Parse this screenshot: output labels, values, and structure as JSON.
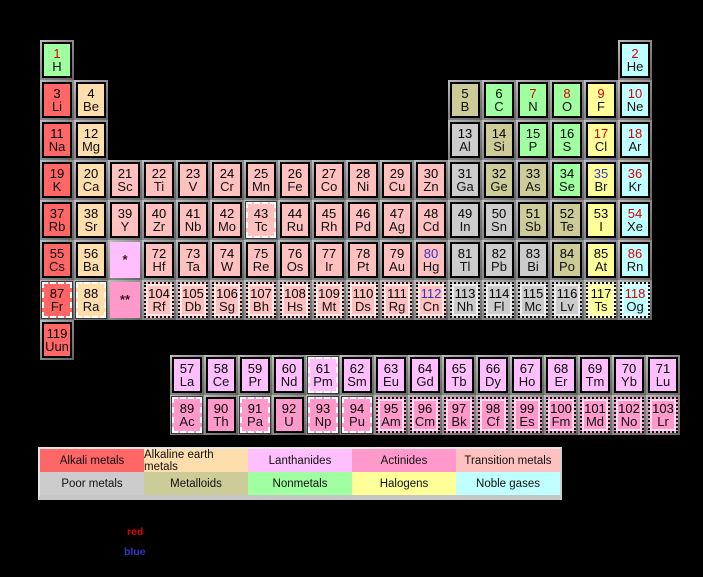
{
  "colors": {
    "background": "#000000",
    "categories": {
      "alkali": "#FF6666",
      "alkaline": "#FFDEAD",
      "lanthanide": "#FFBFFF",
      "actinide": "#FF99CC",
      "transition": "#FFC0C0",
      "poor": "#CCCCCC",
      "metalloid": "#CCCC99",
      "nonmetal": "#A0FFA0",
      "halogen": "#FFFF99",
      "noble": "#C0FFFF"
    },
    "states": {
      "solid": "#000000",
      "liquid": "#3333CC",
      "gas": "#DF0000"
    }
  },
  "legend": {
    "items": [
      {
        "label": "Alkali metals",
        "cat": "alkali"
      },
      {
        "label": "Alkaline earth metals",
        "cat": "alkaline"
      },
      {
        "label": "Lanthanides",
        "cat": "lanthanide"
      },
      {
        "label": "Actinides",
        "cat": "actinide"
      },
      {
        "label": "Transition metals",
        "cat": "transition"
      },
      {
        "label": "Poor metals",
        "cat": "poor"
      },
      {
        "label": "Metalloids",
        "cat": "metalloid"
      },
      {
        "label": "Nonmetals",
        "cat": "nonmetal"
      },
      {
        "label": "Halogens",
        "cat": "halogen"
      },
      {
        "label": "Noble gases",
        "cat": "noble"
      }
    ]
  },
  "states_note": {
    "red_word": "red",
    "blue_word": "blue"
  },
  "placeholders": [
    {
      "symbol": "*",
      "row": 6,
      "col": 3,
      "cat": "lanthanide"
    },
    {
      "symbol": "**",
      "row": 7,
      "col": 3,
      "cat": "actinide"
    }
  ],
  "element_fields": [
    "number",
    "symbol",
    "row",
    "col",
    "category",
    "state",
    "border"
  ],
  "elements_main": [
    [
      1,
      "H",
      1,
      1,
      "nonmetal",
      "gas",
      "solid"
    ],
    [
      2,
      "He",
      1,
      18,
      "noble",
      "gas",
      "solid"
    ],
    [
      3,
      "Li",
      2,
      1,
      "alkali",
      "solid",
      "solid"
    ],
    [
      4,
      "Be",
      2,
      2,
      "alkaline",
      "solid",
      "solid"
    ],
    [
      5,
      "B",
      2,
      13,
      "metalloid",
      "solid",
      "solid"
    ],
    [
      6,
      "C",
      2,
      14,
      "nonmetal",
      "solid",
      "solid"
    ],
    [
      7,
      "N",
      2,
      15,
      "nonmetal",
      "gas",
      "solid"
    ],
    [
      8,
      "O",
      2,
      16,
      "nonmetal",
      "gas",
      "solid"
    ],
    [
      9,
      "F",
      2,
      17,
      "halogen",
      "gas",
      "solid"
    ],
    [
      10,
      "Ne",
      2,
      18,
      "noble",
      "gas",
      "solid"
    ],
    [
      11,
      "Na",
      3,
      1,
      "alkali",
      "solid",
      "solid"
    ],
    [
      12,
      "Mg",
      3,
      2,
      "alkaline",
      "solid",
      "solid"
    ],
    [
      13,
      "Al",
      3,
      13,
      "poor",
      "solid",
      "solid"
    ],
    [
      14,
      "Si",
      3,
      14,
      "metalloid",
      "solid",
      "solid"
    ],
    [
      15,
      "P",
      3,
      15,
      "nonmetal",
      "solid",
      "solid"
    ],
    [
      16,
      "S",
      3,
      16,
      "nonmetal",
      "solid",
      "solid"
    ],
    [
      17,
      "Cl",
      3,
      17,
      "halogen",
      "gas",
      "solid"
    ],
    [
      18,
      "Ar",
      3,
      18,
      "noble",
      "gas",
      "solid"
    ],
    [
      19,
      "K",
      4,
      1,
      "alkali",
      "solid",
      "solid"
    ],
    [
      20,
      "Ca",
      4,
      2,
      "alkaline",
      "solid",
      "solid"
    ],
    [
      21,
      "Sc",
      4,
      3,
      "transition",
      "solid",
      "solid"
    ],
    [
      22,
      "Ti",
      4,
      4,
      "transition",
      "solid",
      "solid"
    ],
    [
      23,
      "V",
      4,
      5,
      "transition",
      "solid",
      "solid"
    ],
    [
      24,
      "Cr",
      4,
      6,
      "transition",
      "solid",
      "solid"
    ],
    [
      25,
      "Mn",
      4,
      7,
      "transition",
      "solid",
      "solid"
    ],
    [
      26,
      "Fe",
      4,
      8,
      "transition",
      "solid",
      "solid"
    ],
    [
      27,
      "Co",
      4,
      9,
      "transition",
      "solid",
      "solid"
    ],
    [
      28,
      "Ni",
      4,
      10,
      "transition",
      "solid",
      "solid"
    ],
    [
      29,
      "Cu",
      4,
      11,
      "transition",
      "solid",
      "solid"
    ],
    [
      30,
      "Zn",
      4,
      12,
      "transition",
      "solid",
      "solid"
    ],
    [
      31,
      "Ga",
      4,
      13,
      "poor",
      "solid",
      "solid"
    ],
    [
      32,
      "Ge",
      4,
      14,
      "metalloid",
      "solid",
      "solid"
    ],
    [
      33,
      "As",
      4,
      15,
      "metalloid",
      "solid",
      "solid"
    ],
    [
      34,
      "Se",
      4,
      16,
      "nonmetal",
      "solid",
      "solid"
    ],
    [
      35,
      "Br",
      4,
      17,
      "halogen",
      "liquid",
      "solid"
    ],
    [
      36,
      "Kr",
      4,
      18,
      "noble",
      "gas",
      "solid"
    ],
    [
      37,
      "Rb",
      5,
      1,
      "alkali",
      "solid",
      "solid"
    ],
    [
      38,
      "Sr",
      5,
      2,
      "alkaline",
      "solid",
      "solid"
    ],
    [
      39,
      "Y",
      5,
      3,
      "transition",
      "solid",
      "solid"
    ],
    [
      40,
      "Zr",
      5,
      4,
      "transition",
      "solid",
      "solid"
    ],
    [
      41,
      "Nb",
      5,
      5,
      "transition",
      "solid",
      "solid"
    ],
    [
      42,
      "Mo",
      5,
      6,
      "transition",
      "solid",
      "solid"
    ],
    [
      43,
      "Tc",
      5,
      7,
      "transition",
      "solid",
      "dashed"
    ],
    [
      44,
      "Ru",
      5,
      8,
      "transition",
      "solid",
      "solid"
    ],
    [
      45,
      "Rh",
      5,
      9,
      "transition",
      "solid",
      "solid"
    ],
    [
      46,
      "Pd",
      5,
      10,
      "transition",
      "solid",
      "solid"
    ],
    [
      47,
      "Ag",
      5,
      11,
      "transition",
      "solid",
      "solid"
    ],
    [
      48,
      "Cd",
      5,
      12,
      "transition",
      "solid",
      "solid"
    ],
    [
      49,
      "In",
      5,
      13,
      "poor",
      "solid",
      "solid"
    ],
    [
      50,
      "Sn",
      5,
      14,
      "poor",
      "solid",
      "solid"
    ],
    [
      51,
      "Sb",
      5,
      15,
      "metalloid",
      "solid",
      "solid"
    ],
    [
      52,
      "Te",
      5,
      16,
      "metalloid",
      "solid",
      "solid"
    ],
    [
      53,
      "I",
      5,
      17,
      "halogen",
      "solid",
      "solid"
    ],
    [
      54,
      "Xe",
      5,
      18,
      "noble",
      "gas",
      "solid"
    ],
    [
      55,
      "Cs",
      6,
      1,
      "alkali",
      "solid",
      "solid"
    ],
    [
      56,
      "Ba",
      6,
      2,
      "alkaline",
      "solid",
      "solid"
    ],
    [
      72,
      "Hf",
      6,
      4,
      "transition",
      "solid",
      "solid"
    ],
    [
      73,
      "Ta",
      6,
      5,
      "transition",
      "solid",
      "solid"
    ],
    [
      74,
      "W",
      6,
      6,
      "transition",
      "solid",
      "solid"
    ],
    [
      75,
      "Re",
      6,
      7,
      "transition",
      "solid",
      "solid"
    ],
    [
      76,
      "Os",
      6,
      8,
      "transition",
      "solid",
      "solid"
    ],
    [
      77,
      "Ir",
      6,
      9,
      "transition",
      "solid",
      "solid"
    ],
    [
      78,
      "Pt",
      6,
      10,
      "transition",
      "solid",
      "solid"
    ],
    [
      79,
      "Au",
      6,
      11,
      "transition",
      "solid",
      "solid"
    ],
    [
      80,
      "Hg",
      6,
      12,
      "transition",
      "liquid",
      "solid"
    ],
    [
      81,
      "Tl",
      6,
      13,
      "poor",
      "solid",
      "solid"
    ],
    [
      82,
      "Pb",
      6,
      14,
      "poor",
      "solid",
      "solid"
    ],
    [
      83,
      "Bi",
      6,
      15,
      "poor",
      "solid",
      "solid"
    ],
    [
      84,
      "Po",
      6,
      16,
      "metalloid",
      "solid",
      "solid"
    ],
    [
      85,
      "At",
      6,
      17,
      "halogen",
      "solid",
      "solid"
    ],
    [
      86,
      "Rn",
      6,
      18,
      "noble",
      "gas",
      "solid"
    ],
    [
      87,
      "Fr",
      7,
      1,
      "alkali",
      "solid",
      "dashed"
    ],
    [
      88,
      "Ra",
      7,
      2,
      "alkaline",
      "solid",
      "dashed"
    ],
    [
      104,
      "Rf",
      7,
      4,
      "transition",
      "solid",
      "dotted"
    ],
    [
      105,
      "Db",
      7,
      5,
      "transition",
      "solid",
      "dotted"
    ],
    [
      106,
      "Sg",
      7,
      6,
      "transition",
      "solid",
      "dotted"
    ],
    [
      107,
      "Bh",
      7,
      7,
      "transition",
      "solid",
      "dotted"
    ],
    [
      108,
      "Hs",
      7,
      8,
      "transition",
      "solid",
      "dotted"
    ],
    [
      109,
      "Mt",
      7,
      9,
      "transition",
      "solid",
      "dotted"
    ],
    [
      110,
      "Ds",
      7,
      10,
      "transition",
      "solid",
      "dotted"
    ],
    [
      111,
      "Rg",
      7,
      11,
      "transition",
      "solid",
      "dotted"
    ],
    [
      112,
      "Cn",
      7,
      12,
      "transition",
      "liquid",
      "dotted"
    ],
    [
      113,
      "Nh",
      7,
      13,
      "poor",
      "solid",
      "dotted"
    ],
    [
      114,
      "Fl",
      7,
      14,
      "poor",
      "solid",
      "dotted"
    ],
    [
      115,
      "Mc",
      7,
      15,
      "poor",
      "solid",
      "dotted"
    ],
    [
      116,
      "Lv",
      7,
      16,
      "poor",
      "solid",
      "dotted"
    ],
    [
      117,
      "Ts",
      7,
      17,
      "halogen",
      "solid",
      "dotted"
    ],
    [
      118,
      "Og",
      7,
      18,
      "noble",
      "gas",
      "dotted"
    ],
    [
      119,
      "Uun",
      8,
      1,
      "alkali",
      "solid",
      "solid"
    ]
  ],
  "elements_fblock": [
    [
      57,
      "La",
      1,
      1,
      "lanthanide",
      "solid",
      "solid"
    ],
    [
      58,
      "Ce",
      1,
      2,
      "lanthanide",
      "solid",
      "solid"
    ],
    [
      59,
      "Pr",
      1,
      3,
      "lanthanide",
      "solid",
      "solid"
    ],
    [
      60,
      "Nd",
      1,
      4,
      "lanthanide",
      "solid",
      "solid"
    ],
    [
      61,
      "Pm",
      1,
      5,
      "lanthanide",
      "solid",
      "dashed"
    ],
    [
      62,
      "Sm",
      1,
      6,
      "lanthanide",
      "solid",
      "solid"
    ],
    [
      63,
      "Eu",
      1,
      7,
      "lanthanide",
      "solid",
      "solid"
    ],
    [
      64,
      "Gd",
      1,
      8,
      "lanthanide",
      "solid",
      "solid"
    ],
    [
      65,
      "Tb",
      1,
      9,
      "lanthanide",
      "solid",
      "solid"
    ],
    [
      66,
      "Dy",
      1,
      10,
      "lanthanide",
      "solid",
      "solid"
    ],
    [
      67,
      "Ho",
      1,
      11,
      "lanthanide",
      "solid",
      "solid"
    ],
    [
      68,
      "Er",
      1,
      12,
      "lanthanide",
      "solid",
      "solid"
    ],
    [
      69,
      "Tm",
      1,
      13,
      "lanthanide",
      "solid",
      "solid"
    ],
    [
      70,
      "Yb",
      1,
      14,
      "lanthanide",
      "solid",
      "solid"
    ],
    [
      71,
      "Lu",
      1,
      15,
      "lanthanide",
      "solid",
      "solid"
    ],
    [
      89,
      "Ac",
      2,
      1,
      "actinide",
      "solid",
      "dashed"
    ],
    [
      90,
      "Th",
      2,
      2,
      "actinide",
      "solid",
      "solid"
    ],
    [
      91,
      "Pa",
      2,
      3,
      "actinide",
      "solid",
      "dashed"
    ],
    [
      92,
      "U",
      2,
      4,
      "actinide",
      "solid",
      "solid"
    ],
    [
      93,
      "Np",
      2,
      5,
      "actinide",
      "solid",
      "dashed"
    ],
    [
      94,
      "Pu",
      2,
      6,
      "actinide",
      "solid",
      "dashed"
    ],
    [
      95,
      "Am",
      2,
      7,
      "actinide",
      "solid",
      "dotted"
    ],
    [
      96,
      "Cm",
      2,
      8,
      "actinide",
      "solid",
      "dotted"
    ],
    [
      97,
      "Bk",
      2,
      9,
      "actinide",
      "solid",
      "dotted"
    ],
    [
      98,
      "Cf",
      2,
      10,
      "actinide",
      "solid",
      "dotted"
    ],
    [
      99,
      "Es",
      2,
      11,
      "actinide",
      "solid",
      "dotted"
    ],
    [
      100,
      "Fm",
      2,
      12,
      "actinide",
      "solid",
      "dotted"
    ],
    [
      101,
      "Md",
      2,
      13,
      "actinide",
      "solid",
      "dotted"
    ],
    [
      102,
      "No",
      2,
      14,
      "actinide",
      "solid",
      "dotted"
    ],
    [
      103,
      "Lr",
      2,
      15,
      "actinide",
      "solid",
      "dotted"
    ]
  ]
}
